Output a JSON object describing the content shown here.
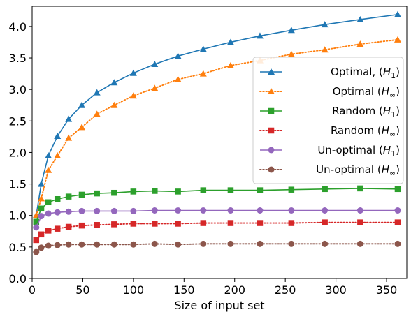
{
  "chart_data": {
    "type": "line",
    "title": "",
    "xlabel": "Size of input set",
    "ylabel": "",
    "xlim": [
      0,
      370
    ],
    "ylim": [
      0.0,
      4.32
    ],
    "xticks": [
      0,
      50,
      100,
      150,
      200,
      250,
      300,
      350
    ],
    "xtick_labels": [
      "0",
      "50",
      "100",
      "150",
      "200",
      "250",
      "300",
      "350"
    ],
    "yticks": [
      0.0,
      0.5,
      1.0,
      1.5,
      2.0,
      2.5,
      3.0,
      3.5,
      4.0
    ],
    "ytick_labels": [
      "0.0",
      "0.5",
      "1.0",
      "1.5",
      "2.0",
      "2.5",
      "3.0",
      "3.5",
      "4.0"
    ],
    "grid": false,
    "legend": "center-right",
    "x": [
      4,
      9,
      16,
      25,
      36,
      49,
      64,
      81,
      100,
      121,
      144,
      169,
      196,
      225,
      256,
      289,
      324,
      361
    ],
    "series": [
      {
        "name": "Optimal, ",
        "sub": "1",
        "color": "#1f77b4",
        "dash": "solid",
        "marker": "triangle",
        "values": [
          1.0,
          1.5,
          1.95,
          2.26,
          2.53,
          2.75,
          2.95,
          3.11,
          3.26,
          3.4,
          3.53,
          3.64,
          3.75,
          3.85,
          3.94,
          4.03,
          4.11,
          4.19
        ]
      },
      {
        "name": "Optimal ",
        "sub": "∞",
        "color": "#ff7f0e",
        "dash": "dotted",
        "marker": "triangle",
        "values": [
          1.0,
          1.27,
          1.72,
          1.95,
          2.23,
          2.4,
          2.61,
          2.75,
          2.9,
          3.02,
          3.16,
          3.25,
          3.38,
          3.46,
          3.56,
          3.63,
          3.72,
          3.79
        ]
      },
      {
        "name": "Random ",
        "sub": "1",
        "color": "#2ca02c",
        "dash": "solid",
        "marker": "square",
        "values": [
          0.9,
          1.11,
          1.21,
          1.26,
          1.3,
          1.33,
          1.35,
          1.36,
          1.38,
          1.39,
          1.38,
          1.4,
          1.4,
          1.4,
          1.41,
          1.42,
          1.43,
          1.42
        ]
      },
      {
        "name": "Random ",
        "sub": "∞",
        "color": "#d62728",
        "dash": "dotted",
        "marker": "square",
        "values": [
          0.61,
          0.7,
          0.76,
          0.79,
          0.82,
          0.84,
          0.85,
          0.86,
          0.87,
          0.87,
          0.87,
          0.88,
          0.88,
          0.88,
          0.88,
          0.89,
          0.89,
          0.89
        ]
      },
      {
        "name": "Un-optimal ",
        "sub": "1",
        "color": "#9467bd",
        "dash": "solid",
        "marker": "circle",
        "values": [
          0.81,
          0.99,
          1.03,
          1.05,
          1.06,
          1.07,
          1.07,
          1.07,
          1.07,
          1.08,
          1.08,
          1.08,
          1.08,
          1.08,
          1.08,
          1.08,
          1.08,
          1.08
        ]
      },
      {
        "name": "Un-optimal ",
        "sub": "∞",
        "color": "#8c564b",
        "dash": "dotted",
        "marker": "circle",
        "values": [
          0.42,
          0.49,
          0.52,
          0.53,
          0.54,
          0.54,
          0.54,
          0.54,
          0.54,
          0.55,
          0.54,
          0.55,
          0.55,
          0.55,
          0.55,
          0.55,
          0.55,
          0.55
        ]
      }
    ]
  }
}
